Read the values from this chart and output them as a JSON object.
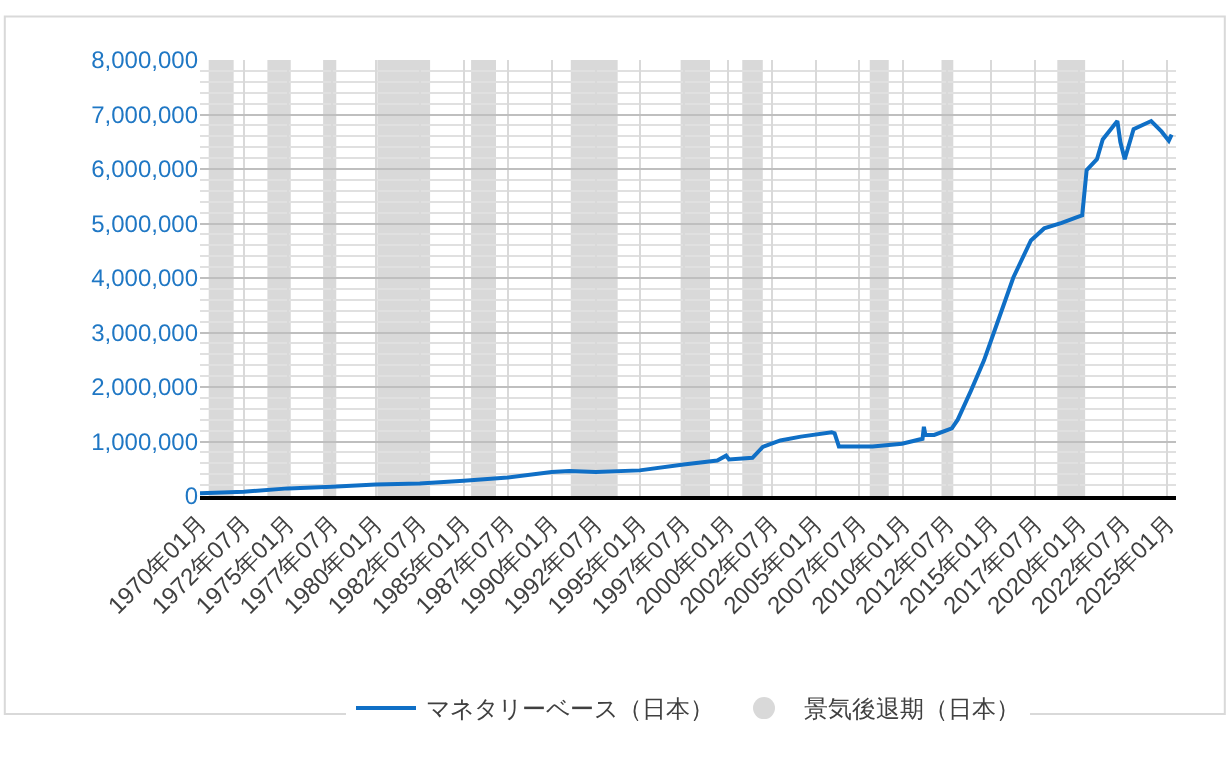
{
  "chart_data": {
    "type": "line",
    "x": [
      "1970-01",
      "1972-07",
      "1975-01",
      "1977-07",
      "1980-01",
      "1982-07",
      "1985-01",
      "1987-07",
      "1990-01",
      "1991-01",
      "1992-07",
      "1995-01",
      "1997-07",
      "1999-06",
      "1999-12",
      "2000-02",
      "2001-06",
      "2002-01",
      "2003-01",
      "2004-03",
      "2005-12",
      "2006-02",
      "2006-05",
      "2008-04",
      "2009-12",
      "2011-02",
      "2011-03",
      "2011-04",
      "2011-10",
      "2012-10",
      "2013-02",
      "2013-11",
      "2014-08",
      "2015-05",
      "2016-04",
      "2017-04",
      "2018-01",
      "2019-01",
      "2019-12",
      "2020-03",
      "2020-06",
      "2021-01",
      "2021-05",
      "2022-03",
      "2022-05",
      "2022-08",
      "2023-02",
      "2024-02",
      "2024-09",
      "2025-02",
      "2025-04"
    ],
    "series": [
      {
        "name": "マネタリーベース（日本）",
        "color": "#0f6fc6",
        "values": [
          50000,
          80000,
          140000,
          170000,
          210000,
          230000,
          280000,
          340000,
          440000,
          460000,
          440000,
          470000,
          580000,
          650000,
          740000,
          670000,
          700000,
          900000,
          1020000,
          1090000,
          1170000,
          1150000,
          910000,
          910000,
          960000,
          1050000,
          1270000,
          1120000,
          1120000,
          1240000,
          1400000,
          1930000,
          2490000,
          3170000,
          4010000,
          4690000,
          4910000,
          5010000,
          5120000,
          5150000,
          5980000,
          6180000,
          6540000,
          6880000,
          6500000,
          6180000,
          6730000,
          6880000,
          6690000,
          6520000,
          6630000
        ]
      }
    ],
    "xlim": [
      "1970-01",
      "2025-07"
    ],
    "xticks": [
      {
        "value": "1970-01",
        "label": "1970年01月"
      },
      {
        "value": "1972-07",
        "label": "1972年07月"
      },
      {
        "value": "1975-01",
        "label": "1975年01月"
      },
      {
        "value": "1977-07",
        "label": "1977年07月"
      },
      {
        "value": "1980-01",
        "label": "1980年01月"
      },
      {
        "value": "1982-07",
        "label": "1982年07月"
      },
      {
        "value": "1985-01",
        "label": "1985年01月"
      },
      {
        "value": "1987-07",
        "label": "1987年07月"
      },
      {
        "value": "1990-01",
        "label": "1990年01月"
      },
      {
        "value": "1992-07",
        "label": "1992年07月"
      },
      {
        "value": "1995-01",
        "label": "1995年01月"
      },
      {
        "value": "1997-07",
        "label": "1997年07月"
      },
      {
        "value": "2000-01",
        "label": "2000年01月"
      },
      {
        "value": "2002-07",
        "label": "2002年07月"
      },
      {
        "value": "2005-01",
        "label": "2005年01月"
      },
      {
        "value": "2007-07",
        "label": "2007年07月"
      },
      {
        "value": "2010-01",
        "label": "2010年01月"
      },
      {
        "value": "2012-07",
        "label": "2012年07月"
      },
      {
        "value": "2015-01",
        "label": "2015年01月"
      },
      {
        "value": "2017-07",
        "label": "2017年07月"
      },
      {
        "value": "2020-01",
        "label": "2020年01月"
      },
      {
        "value": "2022-07",
        "label": "2022年07月"
      },
      {
        "value": "2025-01",
        "label": "2025年01月"
      }
    ],
    "ylim": [
      0,
      8000000
    ],
    "yticks": [
      {
        "value": 0,
        "label": "0"
      },
      {
        "value": 1000000,
        "label": "1,000,000"
      },
      {
        "value": 2000000,
        "label": "2,000,000"
      },
      {
        "value": 3000000,
        "label": "3,000,000"
      },
      {
        "value": 4000000,
        "label": "4,000,000"
      },
      {
        "value": 5000000,
        "label": "5,000,000"
      },
      {
        "value": 6000000,
        "label": "6,000,000"
      },
      {
        "value": 7000000,
        "label": "7,000,000"
      },
      {
        "value": 8000000,
        "label": "8,000,000"
      }
    ],
    "bands": [
      {
        "axis": "x",
        "from": "1970-07",
        "to": "1971-12",
        "label": "景気後退期（日本）",
        "color": "#d9d9d9"
      },
      {
        "axis": "x",
        "from": "1973-11",
        "to": "1975-03",
        "color": "#d9d9d9"
      },
      {
        "axis": "x",
        "from": "1977-01",
        "to": "1977-10",
        "color": "#d9d9d9"
      },
      {
        "axis": "x",
        "from": "1980-02",
        "to": "1983-02",
        "color": "#d9d9d9"
      },
      {
        "axis": "x",
        "from": "1985-06",
        "to": "1986-11",
        "color": "#d9d9d9"
      },
      {
        "axis": "x",
        "from": "1991-02",
        "to": "1993-10",
        "color": "#d9d9d9"
      },
      {
        "axis": "x",
        "from": "1997-05",
        "to": "1999-01",
        "color": "#d9d9d9"
      },
      {
        "axis": "x",
        "from": "2000-11",
        "to": "2002-01",
        "color": "#d9d9d9"
      },
      {
        "axis": "x",
        "from": "2008-02",
        "to": "2009-03",
        "color": "#d9d9d9"
      },
      {
        "axis": "x",
        "from": "2012-03",
        "to": "2012-11",
        "color": "#d9d9d9"
      },
      {
        "axis": "x",
        "from": "2018-10",
        "to": "2020-05",
        "color": "#d9d9d9"
      }
    ],
    "grid": true,
    "legend": "bottom",
    "marker": "none",
    "line_style": "solid"
  }
}
